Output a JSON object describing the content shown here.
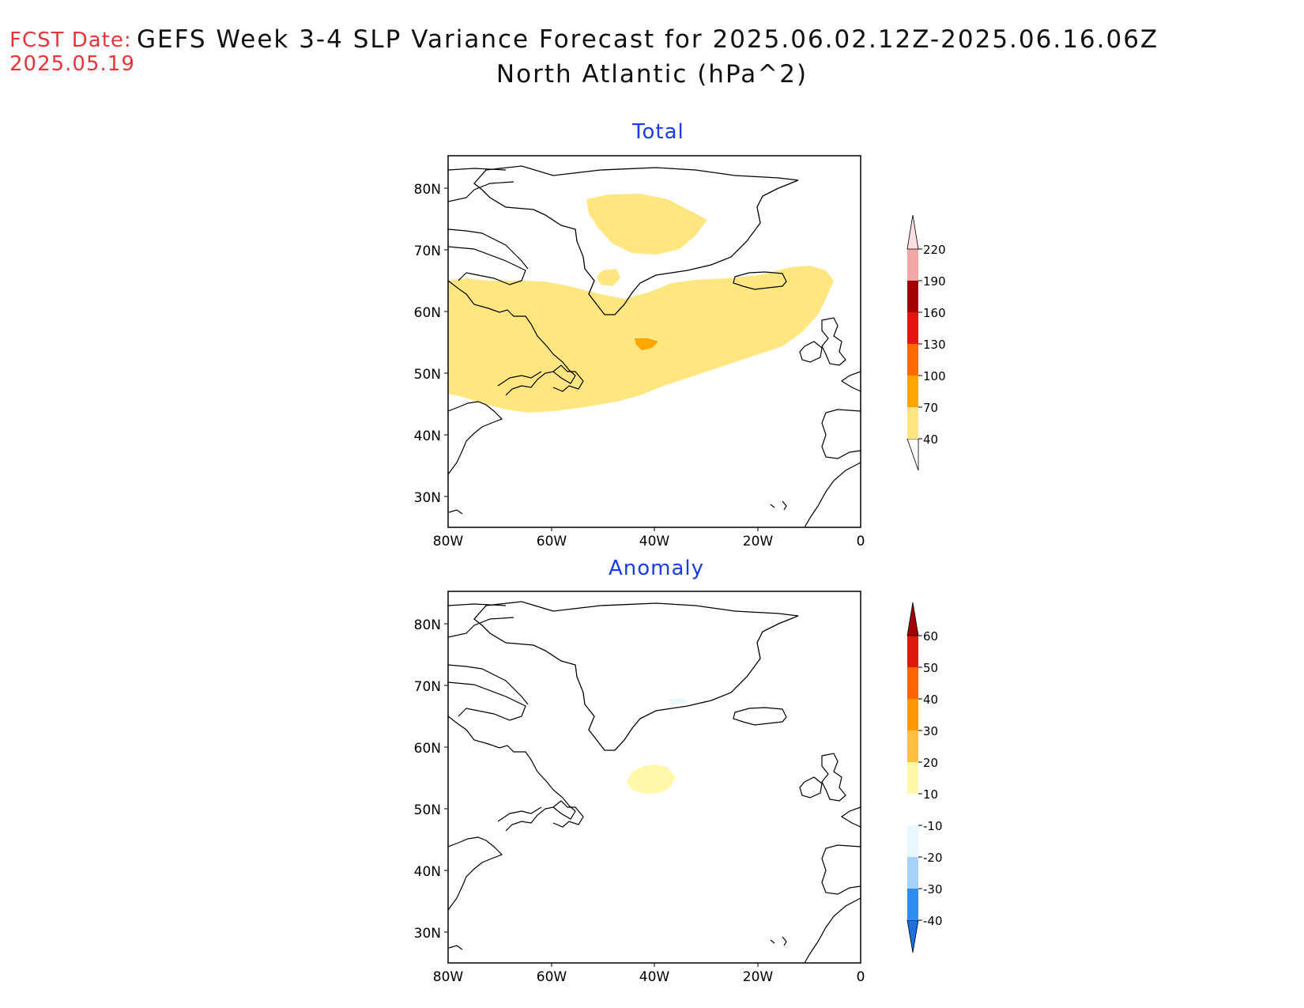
{
  "header": {
    "fcst_label": "FCST Date:",
    "fcst_date": "2025.05.19",
    "title_line1": "GEFS Week 3-4 SLP Variance Forecast for 2025.06.02.12Z-2025.06.16.06Z",
    "title_line2": "North Atlantic (hPa^2)"
  },
  "map": {
    "lat_ticks": [
      "80N",
      "70N",
      "60N",
      "50N",
      "40N",
      "30N"
    ],
    "lon_ticks": [
      "80W",
      "60W",
      "40W",
      "20W",
      "0"
    ]
  },
  "panels": [
    {
      "title": "Total",
      "colorbar": {
        "labels": [
          "40",
          "70",
          "100",
          "130",
          "160",
          "190",
          "220"
        ],
        "colors": [
          "#ffe680",
          "#ffa500",
          "#ff6a00",
          "#e8150f",
          "#a50000",
          "#f4a6a6",
          "#fde0e0"
        ]
      }
    },
    {
      "title": "Anomaly",
      "colorbar": {
        "labels": [
          "-40",
          "-30",
          "-20",
          "-10",
          "10",
          "20",
          "30",
          "40",
          "50",
          "60"
        ],
        "colors": [
          "#1e6fe0",
          "#2e8df0",
          "#a5d2f8",
          "#e8f8ff",
          "#ffffff",
          "#fff8a8",
          "#ffbf40",
          "#ff9900",
          "#ff6400",
          "#e01a0a",
          "#a00000"
        ]
      }
    }
  ]
}
